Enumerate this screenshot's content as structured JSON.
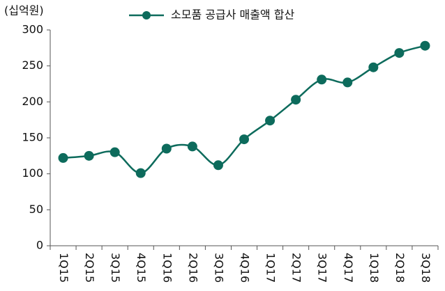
{
  "chart_data": {
    "type": "line",
    "unit_label": "(십억원)",
    "categories": [
      "1Q15",
      "2Q15",
      "3Q15",
      "4Q15",
      "1Q16",
      "2Q16",
      "3Q16",
      "4Q16",
      "1Q17",
      "2Q17",
      "3Q17",
      "4Q17",
      "1Q18",
      "2Q18",
      "3Q18"
    ],
    "series": [
      {
        "name": "소모품 공급사 매출액 합산",
        "color": "#0d6b5c",
        "values": [
          122,
          125,
          130,
          101,
          135,
          138,
          112,
          148,
          174,
          203,
          231,
          227,
          248,
          268,
          278
        ]
      }
    ],
    "ylim": [
      0,
      300
    ],
    "yticks": [
      0,
      50,
      100,
      150,
      200,
      250,
      300
    ],
    "grid": false,
    "legend": "top"
  }
}
